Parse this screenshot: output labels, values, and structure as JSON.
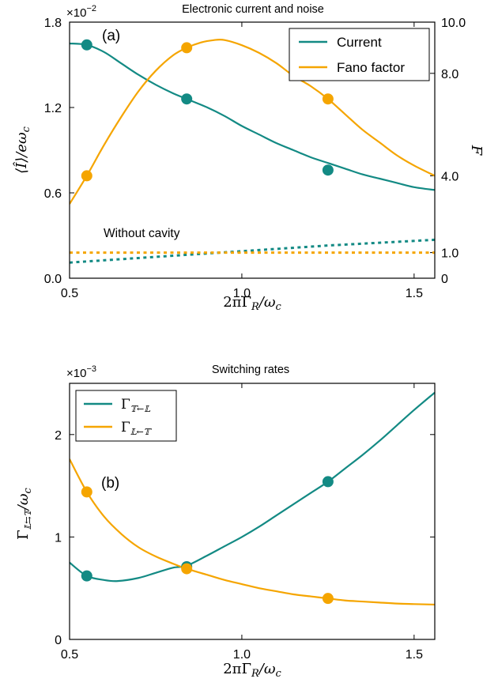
{
  "colors": {
    "current": "#138a84",
    "fano": "#f5a500"
  },
  "chart_data": [
    {
      "type": "line",
      "title": "Electronic current and noise",
      "panel_label": "(a)",
      "xlabel": "2πΓR/ωc",
      "xlabel_parts": {
        "main": "2πΓ",
        "sub": "R",
        "tail": "/ω",
        "tail_sub": "c"
      },
      "ylabel_left": "⟨Î⟩/eωc",
      "ylabel_left_parts": {
        "main": "⟨Î⟩/eω",
        "sub": "c"
      },
      "ylabel_right": "F",
      "y_multiplier": "×10",
      "y_multiplier_exp": "−2",
      "xlim": [
        0.5,
        1.56
      ],
      "ylim_left": [
        0.0,
        1.8
      ],
      "ylim_right": [
        0.0,
        10.0
      ],
      "xticks": [
        0.5,
        1.0,
        1.5
      ],
      "xtick_labels": [
        "0.5",
        "1.0",
        "1.5"
      ],
      "yticks_left": [
        0.0,
        0.6,
        1.2,
        1.8
      ],
      "ytick_left_labels": [
        "0.0",
        "0.6",
        "1.2",
        "1.8"
      ],
      "yticks_right": [
        0,
        1,
        4,
        8,
        10
      ],
      "ytick_right_labels": [
        "0",
        "1.0",
        "4.0",
        "8.0",
        "10.0"
      ],
      "annotation": "Without cavity",
      "legend_position": "top-right",
      "series": [
        {
          "name": "Current",
          "axis": "left",
          "style": "solid",
          "x": [
            0.5,
            0.55,
            0.6,
            0.65,
            0.7,
            0.75,
            0.8,
            0.84,
            0.9,
            0.95,
            1.0,
            1.05,
            1.1,
            1.15,
            1.2,
            1.25,
            1.3,
            1.35,
            1.4,
            1.45,
            1.5,
            1.56
          ],
          "y": [
            1.65,
            1.64,
            1.59,
            1.51,
            1.43,
            1.36,
            1.3,
            1.26,
            1.2,
            1.14,
            1.07,
            1.01,
            0.95,
            0.9,
            0.85,
            0.81,
            0.77,
            0.73,
            0.7,
            0.67,
            0.64,
            0.62
          ],
          "markers_x": [
            0.55,
            0.84,
            1.25
          ],
          "markers_y": [
            1.64,
            1.26,
            0.76
          ]
        },
        {
          "name": "Fano factor",
          "axis": "right",
          "style": "solid",
          "x": [
            0.5,
            0.55,
            0.6,
            0.65,
            0.7,
            0.75,
            0.8,
            0.84,
            0.88,
            0.92,
            0.95,
            1.0,
            1.05,
            1.1,
            1.15,
            1.2,
            1.25,
            1.3,
            1.35,
            1.4,
            1.45,
            1.5,
            1.56
          ],
          "y": [
            2.9,
            4.0,
            5.2,
            6.3,
            7.3,
            8.1,
            8.7,
            9.0,
            9.2,
            9.3,
            9.3,
            9.1,
            8.8,
            8.4,
            7.9,
            7.5,
            7.0,
            6.4,
            5.8,
            5.3,
            4.8,
            4.4,
            4.0
          ],
          "markers_x": [
            0.55,
            0.84,
            1.25
          ],
          "markers_y": [
            4.0,
            9.0,
            7.0
          ]
        },
        {
          "name": "Current (without cavity)",
          "axis": "left",
          "style": "dotted",
          "x": [
            0.5,
            0.75,
            1.0,
            1.25,
            1.56
          ],
          "y": [
            0.11,
            0.15,
            0.19,
            0.23,
            0.27
          ]
        },
        {
          "name": "Fano factor (without cavity)",
          "axis": "right",
          "style": "dotted",
          "x": [
            0.5,
            1.56
          ],
          "y": [
            1.0,
            1.0
          ]
        }
      ]
    },
    {
      "type": "line",
      "title": "Switching rates",
      "panel_label": "(b)",
      "xlabel": "2πΓR/ωc",
      "xlabel_parts": {
        "main": "2πΓ",
        "sub": "R",
        "tail": "/ω",
        "tail_sub": "c"
      },
      "ylabel": "Γ𝕃⇆𝕋/ωc",
      "ylabel_parts": {
        "main": "Γ",
        "sub": "𝕃⇆𝕋",
        "tail": "/ω",
        "tail_sub": "c"
      },
      "y_multiplier": "×10",
      "y_multiplier_exp": "−3",
      "xlim": [
        0.5,
        1.56
      ],
      "ylim": [
        0.0,
        2.5
      ],
      "xticks": [
        0.5,
        1.0,
        1.5
      ],
      "xtick_labels": [
        "0.5",
        "1.0",
        "1.5"
      ],
      "yticks": [
        0,
        1,
        2
      ],
      "ytick_labels": [
        "0",
        "1",
        "2"
      ],
      "legend_position": "top-left",
      "series": [
        {
          "name": "Γ𝕋←𝕃",
          "name_parts": {
            "main": "Γ",
            "sub": "𝕋←𝕃"
          },
          "style": "solid",
          "x": [
            0.5,
            0.55,
            0.6,
            0.64,
            0.7,
            0.75,
            0.8,
            0.84,
            0.9,
            0.95,
            1.0,
            1.05,
            1.1,
            1.15,
            1.2,
            1.25,
            1.3,
            1.35,
            1.4,
            1.45,
            1.5,
            1.56
          ],
          "y": [
            0.75,
            0.62,
            0.58,
            0.57,
            0.6,
            0.65,
            0.7,
            0.72,
            0.82,
            0.91,
            1.0,
            1.1,
            1.21,
            1.32,
            1.43,
            1.54,
            1.67,
            1.8,
            1.94,
            2.09,
            2.24,
            2.41
          ],
          "markers_x": [
            0.55,
            0.84,
            1.25
          ],
          "markers_y": [
            0.62,
            0.71,
            1.54
          ]
        },
        {
          "name": "Γ𝕃←𝕋",
          "name_parts": {
            "main": "Γ",
            "sub": "𝕃←𝕋"
          },
          "style": "solid",
          "x": [
            0.5,
            0.55,
            0.6,
            0.65,
            0.7,
            0.75,
            0.8,
            0.84,
            0.9,
            0.95,
            1.0,
            1.05,
            1.1,
            1.15,
            1.2,
            1.25,
            1.3,
            1.35,
            1.4,
            1.45,
            1.5,
            1.56
          ],
          "y": [
            1.76,
            1.44,
            1.2,
            1.03,
            0.9,
            0.81,
            0.74,
            0.69,
            0.63,
            0.58,
            0.54,
            0.5,
            0.47,
            0.44,
            0.42,
            0.4,
            0.38,
            0.37,
            0.36,
            0.35,
            0.345,
            0.34
          ],
          "markers_x": [
            0.55,
            0.84,
            1.25
          ],
          "markers_y": [
            1.44,
            0.69,
            0.4
          ]
        }
      ]
    }
  ]
}
